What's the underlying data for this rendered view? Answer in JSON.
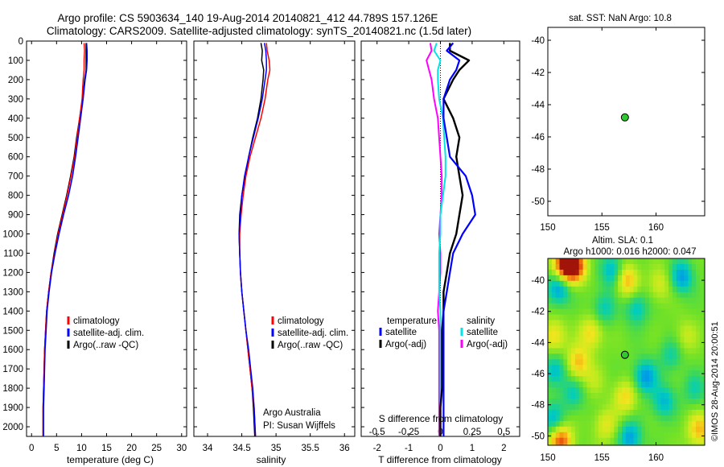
{
  "header": {
    "title_line1": "Argo profile: CS 5903634_140 19-Aug-2014 20140821_412 44.789S 157.126E",
    "title_line2": "Climatology: CARS2009. Satellite-adjusted climatology: synTS_20140821.nc (1.5d later)"
  },
  "colors": {
    "climatology": "#ff0000",
    "satellite": "#0000ff",
    "argo": "#000000",
    "salinity_satellite": "#00e5e5",
    "salinity_argo": "#ff00ff",
    "marker": "#2ec92e"
  },
  "panels": {
    "temperature": {
      "xlabel": "temperature (deg C)",
      "legend": [
        "climatology",
        "satellite-adj. clim.",
        "Argo(..raw -QC)"
      ]
    },
    "salinity": {
      "xlabel": "salinity",
      "legend": [
        "climatology",
        "satellite-adj. clim.",
        "Argo(..raw -QC)"
      ],
      "note_line1": "Argo Australia",
      "note_line2": "PI: Susan Wijffels"
    },
    "difference": {
      "xlabel_bottom": "T difference from climatology",
      "xlabel_top": "S difference from climatology",
      "legend_temperature_header": "temperature",
      "legend_salinity_header": "salinity",
      "legend_temperature": [
        "satellite",
        "Argo(-adj)"
      ],
      "legend_salinity": [
        "satellite",
        "Argo(-adj)"
      ]
    },
    "sst_map": {
      "title": "sat. SST: NaN Argo: 10.8"
    },
    "sla_map": {
      "title_line1": "Altim. SLA: 0.1",
      "title_line2": "Argo h1000: 0.016 h2000: 0.047",
      "side_label": "©IMOS 28-Aug-2014 20:00:51"
    }
  },
  "chart_data": [
    {
      "type": "line",
      "panel": "temperature",
      "xlabel": "temperature (deg C)",
      "xlim": [
        -1,
        31
      ],
      "ylim": [
        2050,
        0
      ],
      "xticks": [
        0,
        5,
        10,
        15,
        20,
        25,
        30
      ],
      "yticks": [
        0,
        100,
        200,
        300,
        400,
        500,
        600,
        700,
        800,
        900,
        1000,
        1100,
        1200,
        1300,
        1400,
        1500,
        1600,
        1700,
        1800,
        1900,
        2000
      ],
      "series": [
        {
          "name": "climatology",
          "color": "#ff0000",
          "x": [
            10.5,
            10.6,
            10.5,
            10.5,
            10.3,
            10.1,
            9.6,
            9.1,
            8.6,
            7.9,
            7.1,
            6.2,
            5.3,
            4.6,
            3.9,
            3.4,
            3.0,
            2.8,
            2.6,
            2.5,
            2.4,
            2.3,
            2.3
          ],
          "y": [
            10,
            50,
            100,
            150,
            200,
            300,
            400,
            500,
            600,
            700,
            800,
            900,
            1000,
            1100,
            1200,
            1300,
            1400,
            1500,
            1600,
            1700,
            1800,
            1900,
            2050
          ]
        },
        {
          "name": "satellite-adj. clim.",
          "color": "#0000ff",
          "x": [
            11.0,
            11.1,
            11.1,
            11.0,
            10.7,
            10.3,
            9.8,
            9.3,
            8.8,
            8.2,
            7.4,
            6.4,
            5.5,
            4.7,
            4.0,
            3.5,
            3.1,
            2.9,
            2.7,
            2.6,
            2.5,
            2.4,
            2.4
          ],
          "y": [
            10,
            50,
            100,
            150,
            200,
            300,
            400,
            500,
            600,
            700,
            800,
            900,
            1000,
            1100,
            1200,
            1300,
            1400,
            1500,
            1600,
            1700,
            1800,
            1900,
            2050
          ]
        },
        {
          "name": "Argo(..raw -QC)",
          "color": "#000000",
          "x": [
            10.9,
            10.9,
            10.9,
            10.9,
            10.6,
            10.2,
            9.6,
            9.0,
            8.5,
            7.8,
            7.0,
            6.1,
            5.2,
            4.5,
            3.9,
            3.4,
            3.0,
            2.8,
            2.6,
            2.5,
            2.4,
            2.3,
            2.3
          ],
          "y": [
            10,
            50,
            100,
            150,
            200,
            300,
            400,
            500,
            600,
            700,
            800,
            900,
            1000,
            1100,
            1200,
            1300,
            1400,
            1500,
            1600,
            1700,
            1800,
            1900,
            2050
          ]
        }
      ]
    },
    {
      "type": "line",
      "panel": "salinity",
      "xlabel": "salinity",
      "xlim": [
        33.8,
        36.15
      ],
      "ylim": [
        2050,
        0
      ],
      "xticks": [
        34,
        34.5,
        35,
        35.5,
        36
      ],
      "xticklabels": [
        "34",
        "34.5",
        "35",
        "35.5",
        "36"
      ],
      "series": [
        {
          "name": "climatology",
          "color": "#ff0000",
          "x": [
            34.86,
            34.87,
            34.9,
            34.91,
            34.88,
            34.84,
            34.78,
            34.7,
            34.62,
            34.56,
            34.52,
            34.49,
            34.47,
            34.47,
            34.48,
            34.5,
            34.53,
            34.56,
            34.59,
            34.62,
            34.65,
            34.68,
            34.7
          ],
          "y": [
            10,
            50,
            100,
            150,
            200,
            300,
            400,
            500,
            600,
            700,
            800,
            900,
            1000,
            1100,
            1200,
            1300,
            1400,
            1500,
            1600,
            1700,
            1800,
            1900,
            2050
          ]
        },
        {
          "name": "satellite-adj. clim.",
          "color": "#0000ff",
          "x": [
            34.83,
            34.85,
            34.86,
            34.86,
            34.84,
            34.8,
            34.74,
            34.67,
            34.6,
            34.54,
            34.5,
            34.48,
            34.46,
            34.47,
            34.48,
            34.5,
            34.53,
            34.56,
            34.6,
            34.63,
            34.66,
            34.68,
            34.7
          ],
          "y": [
            10,
            50,
            100,
            150,
            200,
            300,
            400,
            500,
            600,
            700,
            800,
            900,
            1000,
            1100,
            1200,
            1300,
            1400,
            1500,
            1600,
            1700,
            1800,
            1900,
            2050
          ]
        },
        {
          "name": "Argo(..raw -QC)",
          "color": "#000000",
          "x": [
            34.78,
            34.8,
            34.79,
            34.82,
            34.81,
            34.78,
            34.73,
            34.66,
            34.6,
            34.55,
            34.5,
            34.47,
            34.46,
            34.47,
            34.48,
            34.5,
            34.53,
            34.56,
            34.59,
            34.62,
            34.65,
            34.67,
            34.69
          ],
          "y": [
            10,
            50,
            100,
            150,
            200,
            300,
            400,
            500,
            600,
            700,
            800,
            900,
            1000,
            1100,
            1200,
            1300,
            1400,
            1500,
            1600,
            1700,
            1800,
            1900,
            2050
          ]
        }
      ]
    },
    {
      "type": "line",
      "panel": "difference",
      "xlabel": "T difference from climatology",
      "xlim_T": [
        -2.5,
        2.5
      ],
      "xlim_S": [
        -0.625,
        0.625
      ],
      "ylim": [
        2050,
        0
      ],
      "xticks_T": [
        -2,
        -1,
        0,
        1,
        2
      ],
      "xticks_S": [
        "-0.5",
        "-0.25",
        "0",
        "0.25",
        "0.5"
      ],
      "series": [
        {
          "name": "satellite",
          "quantity": "temperature",
          "color": "#0000ff",
          "x": [
            0.4,
            0.2,
            0.6,
            0.5,
            0.3,
            0.1,
            0.1,
            0.2,
            0.3,
            0.8,
            1.0,
            1.1,
            0.7,
            0.4,
            0.3,
            0.2,
            0.1,
            0.1,
            0.1,
            0.1,
            0.1,
            0.1,
            0.1
          ],
          "y": [
            10,
            50,
            100,
            150,
            200,
            300,
            400,
            500,
            600,
            700,
            800,
            900,
            1000,
            1100,
            1200,
            1300,
            1400,
            1500,
            1600,
            1700,
            1800,
            1900,
            2050
          ]
        },
        {
          "name": "Argo(-adj)",
          "quantity": "temperature",
          "color": "#000000",
          "x": [
            0.3,
            0.3,
            0.9,
            0.6,
            0.4,
            0.1,
            0.4,
            0.6,
            0.5,
            0.6,
            0.7,
            0.6,
            0.5,
            0.3,
            0.2,
            0.1,
            0.1,
            0.05,
            0.05,
            0.05,
            0.05,
            0.0,
            0.0
          ],
          "y": [
            10,
            50,
            100,
            150,
            200,
            300,
            400,
            500,
            600,
            700,
            800,
            900,
            1000,
            1100,
            1200,
            1300,
            1400,
            1500,
            1600,
            1700,
            1800,
            1900,
            2050
          ]
        },
        {
          "name": "satellite",
          "quantity": "salinity",
          "color": "#00e5e5",
          "x": [
            -0.03,
            -0.05,
            0.0,
            -0.02,
            -0.02,
            -0.01,
            0.02,
            0.03,
            0.04,
            0.04,
            0.02,
            0.0,
            0.0,
            -0.01,
            -0.01,
            -0.01,
            0.0,
            0.0,
            0.0,
            0.0,
            0.0,
            0.0,
            0.0
          ],
          "y": [
            10,
            50,
            100,
            150,
            200,
            300,
            400,
            500,
            600,
            700,
            800,
            900,
            1000,
            1100,
            1200,
            1300,
            1400,
            1500,
            1600,
            1700,
            1800,
            1900,
            2050
          ]
        },
        {
          "name": "Argo(-adj)",
          "quantity": "salinity",
          "color": "#ff00ff",
          "x": [
            -0.08,
            -0.07,
            -0.11,
            -0.09,
            -0.07,
            -0.05,
            -0.02,
            -0.01,
            0.0,
            0.01,
            0.01,
            0.0,
            -0.01,
            0.0,
            0.0,
            -0.01,
            -0.02,
            -0.01,
            -0.01,
            -0.01,
            -0.01,
            -0.01,
            -0.01
          ],
          "y": [
            10,
            50,
            100,
            150,
            200,
            300,
            400,
            500,
            600,
            700,
            800,
            900,
            1000,
            1100,
            1200,
            1300,
            1400,
            1500,
            1600,
            1700,
            1800,
            1900,
            2050
          ]
        }
      ]
    },
    {
      "type": "scatter",
      "panel": "sst_map",
      "title": "sat. SST: NaN Argo: 10.8",
      "xlim": [
        150,
        164.5
      ],
      "ylim": [
        -50.9,
        -39.2
      ],
      "xticks": [
        150,
        155,
        160
      ],
      "yticks": [
        -40,
        -42,
        -44,
        -46,
        -48,
        -50
      ],
      "points": [
        {
          "x": 157.126,
          "y": -44.789
        }
      ]
    },
    {
      "type": "heatmap",
      "panel": "sla_map",
      "title": "Altim. SLA: 0.1",
      "xlim": [
        150,
        164.5
      ],
      "ylim": [
        -50.6,
        -38.6
      ],
      "xticks": [
        150,
        155,
        160
      ],
      "yticks": [
        -40,
        -42,
        -44,
        -46,
        -48,
        -50
      ],
      "points": [
        {
          "x": 157.126,
          "y": -44.789
        }
      ],
      "blobs": [
        {
          "x": 151.5,
          "y": -39.0,
          "v": 1.0
        },
        {
          "x": 152.5,
          "y": -39.1,
          "v": 0.9
        },
        {
          "x": 156.0,
          "y": -39.4,
          "v": -0.5
        },
        {
          "x": 157.3,
          "y": -40.0,
          "v": 0.6
        },
        {
          "x": 151.0,
          "y": -40.5,
          "v": -0.6
        },
        {
          "x": 150.6,
          "y": -43.6,
          "v": 0.45
        },
        {
          "x": 150.7,
          "y": -45.8,
          "v": -0.45
        },
        {
          "x": 152.8,
          "y": -45.3,
          "v": 0.55
        },
        {
          "x": 154.0,
          "y": -43.4,
          "v": 0.45
        },
        {
          "x": 155.2,
          "y": -41.8,
          "v": -0.35
        },
        {
          "x": 158.2,
          "y": -41.8,
          "v": -0.4
        },
        {
          "x": 160.4,
          "y": -40.3,
          "v": 0.3
        },
        {
          "x": 162.4,
          "y": -39.8,
          "v": -0.55
        },
        {
          "x": 159.0,
          "y": -46.2,
          "v": -0.6
        },
        {
          "x": 160.7,
          "y": -47.8,
          "v": -0.45
        },
        {
          "x": 157.2,
          "y": -47.5,
          "v": 0.45
        },
        {
          "x": 155.4,
          "y": -49.3,
          "v": 0.35
        },
        {
          "x": 152.4,
          "y": -47.3,
          "v": -0.35
        },
        {
          "x": 151.2,
          "y": -50.3,
          "v": 0.85
        },
        {
          "x": 150.5,
          "y": -49.0,
          "v": -0.45
        },
        {
          "x": 157.6,
          "y": -50.1,
          "v": -0.55
        },
        {
          "x": 162.8,
          "y": -43.6,
          "v": 0.25
        },
        {
          "x": 163.6,
          "y": -47.0,
          "v": -0.3
        },
        {
          "x": 164.0,
          "y": -49.6,
          "v": 0.55
        },
        {
          "x": 161.4,
          "y": -44.8,
          "v": -0.3
        },
        {
          "x": 154.2,
          "y": -46.5,
          "v": 0.2
        }
      ]
    }
  ]
}
